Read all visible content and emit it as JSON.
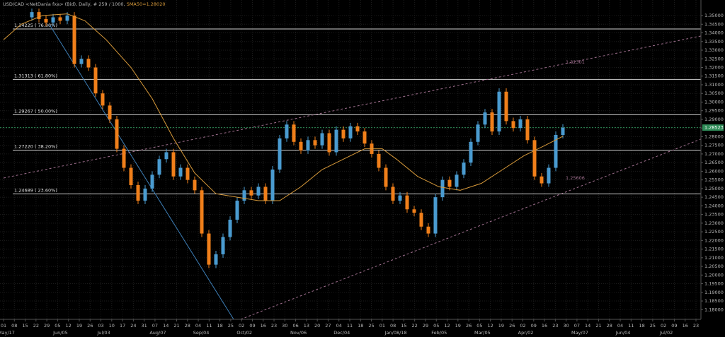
{
  "chart_data": {
    "type": "candlestick",
    "title": "USD/CAD <NetDania fxa> (Bid), Daily, # 259 / 1000,",
    "sma_label": "SMA50=1.28020",
    "up_color": "#4a9bd0",
    "down_color": "#f07f1a",
    "sma_color": "#d89a3a",
    "grid": true,
    "xlim": [
      -4.5,
      94.5
    ],
    "ylim": [
      1.1744,
      1.359
    ],
    "yticks": [
      {
        "value": 1.35,
        "label": "1.35000"
      },
      {
        "value": 1.345,
        "label": "1.34500"
      },
      {
        "value": 1.34,
        "label": "1.34000"
      },
      {
        "value": 1.335,
        "label": "1.33500"
      },
      {
        "value": 1.33,
        "label": "1.33000"
      },
      {
        "value": 1.325,
        "label": "1.32500"
      },
      {
        "value": 1.32,
        "label": "1.32000"
      },
      {
        "value": 1.315,
        "label": "1.31500"
      },
      {
        "value": 1.31,
        "label": "1.31000"
      },
      {
        "value": 1.305,
        "label": "1.30500"
      },
      {
        "value": 1.3,
        "label": "1.30000"
      },
      {
        "value": 1.295,
        "label": "1.29500"
      },
      {
        "value": 1.29,
        "label": "1.29000"
      },
      {
        "value": 1.285,
        "label": "1.28500"
      },
      {
        "value": 1.28,
        "label": "1.28000"
      },
      {
        "value": 1.275,
        "label": "1.27500"
      },
      {
        "value": 1.27,
        "label": "1.27000"
      },
      {
        "value": 1.265,
        "label": "1.26500"
      },
      {
        "value": 1.26,
        "label": "1.26000"
      },
      {
        "value": 1.255,
        "label": "1.25500"
      },
      {
        "value": 1.25,
        "label": "1.25000"
      },
      {
        "value": 1.245,
        "label": "1.24500"
      },
      {
        "value": 1.24,
        "label": "1.24000"
      },
      {
        "value": 1.235,
        "label": "1.23500"
      },
      {
        "value": 1.23,
        "label": "1.23000"
      },
      {
        "value": 1.225,
        "label": "1.22500"
      },
      {
        "value": 1.22,
        "label": "1.22000"
      },
      {
        "value": 1.215,
        "label": "1.21500"
      },
      {
        "value": 1.21,
        "label": "1.21000"
      },
      {
        "value": 1.205,
        "label": "1.20500"
      },
      {
        "value": 1.2,
        "label": "1.20000"
      },
      {
        "value": 1.195,
        "label": "1.19500"
      },
      {
        "value": 1.19,
        "label": "1.19000"
      },
      {
        "value": 1.185,
        "label": "1.18500"
      },
      {
        "value": 1.18,
        "label": "1.18000"
      }
    ],
    "date_labels": [
      "01",
      "08",
      "15",
      "22",
      "29",
      "05",
      "12",
      "19",
      "26",
      "03",
      "10",
      "17",
      "24",
      "31",
      "07",
      "14",
      "21",
      "28",
      "04",
      "11",
      "18",
      "25",
      "02",
      "09",
      "16",
      "23",
      "30",
      "06",
      "13",
      "20",
      "27",
      "04",
      "11",
      "18",
      "25",
      "01",
      "08",
      "15",
      "22",
      "29",
      "05",
      "12",
      "19",
      "26",
      "05",
      "12",
      "19",
      "26",
      "02",
      "09",
      "16",
      "23",
      "30",
      "07",
      "14",
      "21",
      "28",
      "04",
      "11",
      "18",
      "25",
      "02",
      "09",
      "16",
      "23"
    ],
    "month_labels": [
      "May/17",
      null,
      null,
      null,
      null,
      "Jun/05",
      null,
      null,
      null,
      "Jul/03",
      null,
      null,
      null,
      null,
      "Aug/07",
      null,
      null,
      null,
      "Sep/04",
      null,
      null,
      null,
      "Oct/02",
      null,
      null,
      null,
      null,
      "Nov/06",
      null,
      null,
      null,
      "Dec/04",
      null,
      null,
      null,
      null,
      "Jan/08/18",
      null,
      null,
      null,
      "Feb/05",
      null,
      null,
      null,
      "Mar/05",
      null,
      null,
      null,
      "Apr/02",
      null,
      null,
      null,
      null,
      "May/07",
      null,
      null,
      null,
      "Jun/04",
      null,
      null,
      null,
      "Jul/02",
      null,
      null,
      null
    ],
    "candles": {
      "open": [
        1.349,
        1.352,
        1.348,
        1.346,
        1.349,
        1.347,
        1.35,
        1.322,
        1.325,
        1.32,
        1.305,
        1.298,
        1.29,
        1.273,
        1.262,
        1.252,
        1.243,
        1.25,
        1.258,
        1.267,
        1.271,
        1.257,
        1.262,
        1.255,
        1.249,
        1.224,
        1.206,
        1.212,
        1.222,
        1.232,
        1.243,
        1.249,
        1.246,
        1.251,
        1.243,
        1.261,
        1.279,
        1.287,
        1.277,
        1.272,
        1.278,
        1.275,
        1.282,
        1.271,
        1.284,
        1.279,
        1.286,
        1.283,
        1.276,
        1.27,
        1.262,
        1.251,
        1.243,
        1.246,
        1.238,
        1.236,
        1.228,
        1.224,
        1.245,
        1.255,
        1.251,
        1.258,
        1.265,
        1.277,
        1.287,
        1.294,
        1.283,
        1.306,
        1.289,
        1.285,
        1.29,
        1.278,
        1.257,
        1.253,
        1.262,
        1.281
      ],
      "high": [
        1.354,
        1.354,
        1.35,
        1.351,
        1.351,
        1.352,
        1.352,
        1.327,
        1.327,
        1.322,
        1.307,
        1.3,
        1.292,
        1.275,
        1.264,
        1.254,
        1.252,
        1.26,
        1.269,
        1.273,
        1.273,
        1.264,
        1.264,
        1.257,
        1.251,
        1.226,
        1.214,
        1.224,
        1.234,
        1.245,
        1.251,
        1.251,
        1.253,
        1.253,
        1.263,
        1.281,
        1.289,
        1.289,
        1.279,
        1.28,
        1.28,
        1.284,
        1.284,
        1.286,
        1.286,
        1.288,
        1.288,
        1.285,
        1.278,
        1.272,
        1.264,
        1.253,
        1.248,
        1.248,
        1.24,
        1.238,
        1.23,
        1.247,
        1.257,
        1.257,
        1.26,
        1.267,
        1.279,
        1.289,
        1.296,
        1.296,
        1.308,
        1.308,
        1.291,
        1.292,
        1.292,
        1.28,
        1.259,
        1.264,
        1.283,
        1.2872
      ],
      "low": [
        1.347,
        1.346,
        1.344,
        1.344,
        1.345,
        1.345,
        1.32,
        1.32,
        1.318,
        1.303,
        1.296,
        1.288,
        1.271,
        1.26,
        1.25,
        1.241,
        1.241,
        1.248,
        1.256,
        1.265,
        1.255,
        1.255,
        1.253,
        1.247,
        1.222,
        1.204,
        1.204,
        1.21,
        1.22,
        1.23,
        1.241,
        1.244,
        1.244,
        1.241,
        1.241,
        1.259,
        1.277,
        1.275,
        1.27,
        1.27,
        1.273,
        1.273,
        1.269,
        1.269,
        1.277,
        1.277,
        1.281,
        1.274,
        1.268,
        1.26,
        1.249,
        1.241,
        1.241,
        1.236,
        1.234,
        1.226,
        1.222,
        1.222,
        1.243,
        1.249,
        1.249,
        1.256,
        1.263,
        1.275,
        1.285,
        1.281,
        1.281,
        1.287,
        1.283,
        1.283,
        1.276,
        1.255,
        1.251,
        1.251,
        1.26,
        1.279
      ],
      "close": [
        1.352,
        1.348,
        1.346,
        1.349,
        1.347,
        1.35,
        1.322,
        1.325,
        1.32,
        1.305,
        1.298,
        1.29,
        1.273,
        1.262,
        1.252,
        1.243,
        1.25,
        1.258,
        1.267,
        1.271,
        1.257,
        1.262,
        1.255,
        1.249,
        1.224,
        1.206,
        1.212,
        1.222,
        1.232,
        1.243,
        1.249,
        1.246,
        1.251,
        1.243,
        1.261,
        1.279,
        1.287,
        1.277,
        1.272,
        1.278,
        1.275,
        1.282,
        1.271,
        1.284,
        1.279,
        1.286,
        1.283,
        1.276,
        1.27,
        1.262,
        1.251,
        1.243,
        1.246,
        1.238,
        1.236,
        1.228,
        1.224,
        1.245,
        1.255,
        1.251,
        1.258,
        1.265,
        1.277,
        1.287,
        1.294,
        1.283,
        1.306,
        1.289,
        1.285,
        1.29,
        1.278,
        1.257,
        1.253,
        1.262,
        1.281,
        1.2852
      ]
    },
    "sma": {
      "x": [
        -4,
        -1.5,
        1.5,
        5,
        7.5,
        10.5,
        14,
        17,
        20,
        23,
        26,
        29,
        32,
        35,
        38,
        41,
        44,
        47,
        49.5,
        51.5,
        54.5,
        57.5,
        60.5,
        63.5,
        66.5,
        69.5,
        72.5,
        75
      ],
      "values": [
        1.336,
        1.345,
        1.35,
        1.351,
        1.347,
        1.336,
        1.32,
        1.302,
        1.279,
        1.259,
        1.247,
        1.245,
        1.243,
        1.243,
        1.251,
        1.261,
        1.267,
        1.273,
        1.273,
        1.267,
        1.257,
        1.251,
        1.249,
        1.253,
        1.261,
        1.269,
        1.275,
        1.2802
      ]
    },
    "fib_levels": [
      {
        "value": 1.34225,
        "label": "1.34225 ( 76.80%)"
      },
      {
        "value": 1.31313,
        "label": "1.31313 ( 61.80%)"
      },
      {
        "value": 1.29267,
        "label": "1.29267 ( 50.00%)"
      },
      {
        "value": 1.2722,
        "label": "1.27220 ( 38.20%)"
      },
      {
        "value": 1.24689,
        "label": "1.24689 ( 23.60%)"
      }
    ],
    "trend_lines": [
      {
        "color": "#3d7fb8",
        "dashed": false,
        "x": [
          2.5,
          28.5
        ],
        "y": [
          1.3447,
          1.1744
        ]
      },
      {
        "color": "#a0708f",
        "dashed": true,
        "x": [
          -4,
          94.5
        ],
        "y": [
          1.2561,
          1.3382
        ]
      },
      {
        "color": "#a0708f",
        "dashed": true,
        "x": [
          29.5,
          94.5
        ],
        "y": [
          1.1744,
          1.2786
        ]
      }
    ],
    "trend_labels": [
      {
        "x": 75.2,
        "value": 1.32301,
        "label": "1.32301"
      },
      {
        "x": 75.2,
        "value": 1.25606,
        "label": "1.25606"
      }
    ],
    "last_price": {
      "value": 1.28523,
      "label": "1.28523",
      "color": "#2e8b57"
    }
  }
}
